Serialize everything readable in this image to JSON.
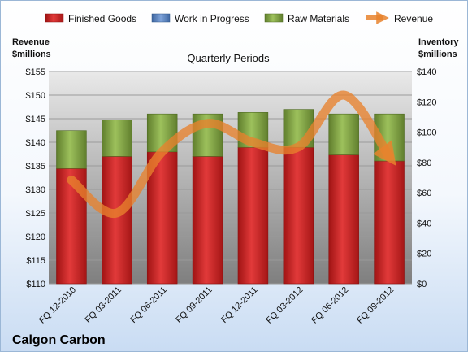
{
  "chart_data": {
    "type": "bar",
    "title": "Quarterly Periods",
    "company": "Calgon Carbon",
    "left_axis": {
      "label_line1": "Revenue",
      "label_line2": "$millions",
      "range": [
        110,
        155
      ],
      "step": 5,
      "prefix": "$"
    },
    "right_axis": {
      "label_line1": "Inventory",
      "label_line2": "$millions",
      "range": [
        0,
        140
      ],
      "step": 20,
      "prefix": "$"
    },
    "categories": [
      "FQ 12-2010",
      "FQ 03-2011",
      "FQ 06-2011",
      "FQ 09-2011",
      "FQ 12-2011",
      "FQ 03-2012",
      "FQ 06-2012",
      "FQ 09-2012"
    ],
    "series": [
      {
        "name": "Finished Goods",
        "axis": "right",
        "color": "#d42a2a",
        "values": [
          76,
          84,
          87,
          84,
          90,
          90,
          85,
          81
        ]
      },
      {
        "name": "Work in Progress",
        "axis": "right",
        "color": "#5b86c5",
        "values": [
          0,
          0,
          0,
          0,
          0,
          0,
          0,
          0
        ]
      },
      {
        "name": "Raw Materials",
        "axis": "right",
        "color": "#8aab4e",
        "values": [
          25,
          24,
          25,
          28,
          23,
          25,
          27,
          31
        ]
      },
      {
        "name": "Revenue",
        "axis": "left",
        "type": "line",
        "color": "#e8822d",
        "values": [
          132,
          125,
          138,
          144,
          140,
          139,
          150,
          137
        ]
      }
    ],
    "legend_position": "top",
    "grid": true
  }
}
